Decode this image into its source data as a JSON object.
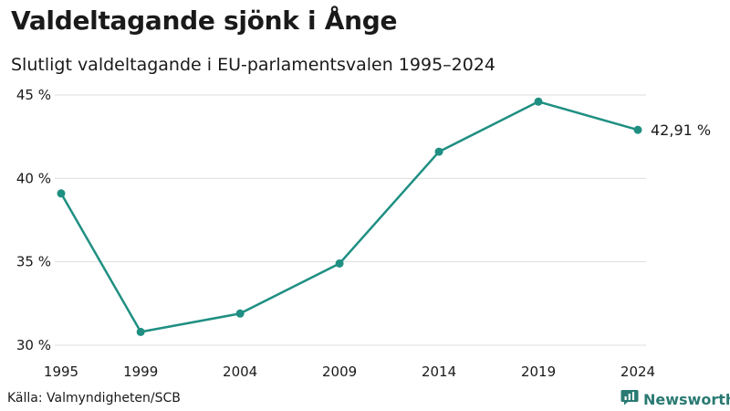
{
  "source": "Källa: Valmyndigheten/SCB",
  "brand": {
    "name": "Newsworthy",
    "icon": "newsworthy-logo-icon",
    "color": "#2a7a73"
  },
  "colors": {
    "line": "#1f8f82",
    "grid": "#dddddd"
  },
  "chart_data": {
    "type": "line",
    "title": "Valdeltagande sjönk i Ånge",
    "subtitle": "Slutligt valdeltagande i EU-parlamentsvalen 1995–2024",
    "xlabel": "",
    "ylabel": "",
    "x": [
      1995,
      1999,
      2004,
      2009,
      2014,
      2019,
      2024
    ],
    "x_tick_labels": [
      "1995",
      "1999",
      "2004",
      "2009",
      "2014",
      "2019",
      "2024"
    ],
    "series": [
      {
        "name": "Valdeltagande",
        "values": [
          39.1,
          30.8,
          31.9,
          34.9,
          41.6,
          44.6,
          42.91
        ]
      }
    ],
    "y_ticks": [
      30,
      35,
      40,
      45
    ],
    "y_tick_labels": [
      "30 %",
      "35 %",
      "40 %",
      "45 %"
    ],
    "ylim": [
      30,
      45
    ],
    "grid": true,
    "end_label": "42,91 %"
  }
}
